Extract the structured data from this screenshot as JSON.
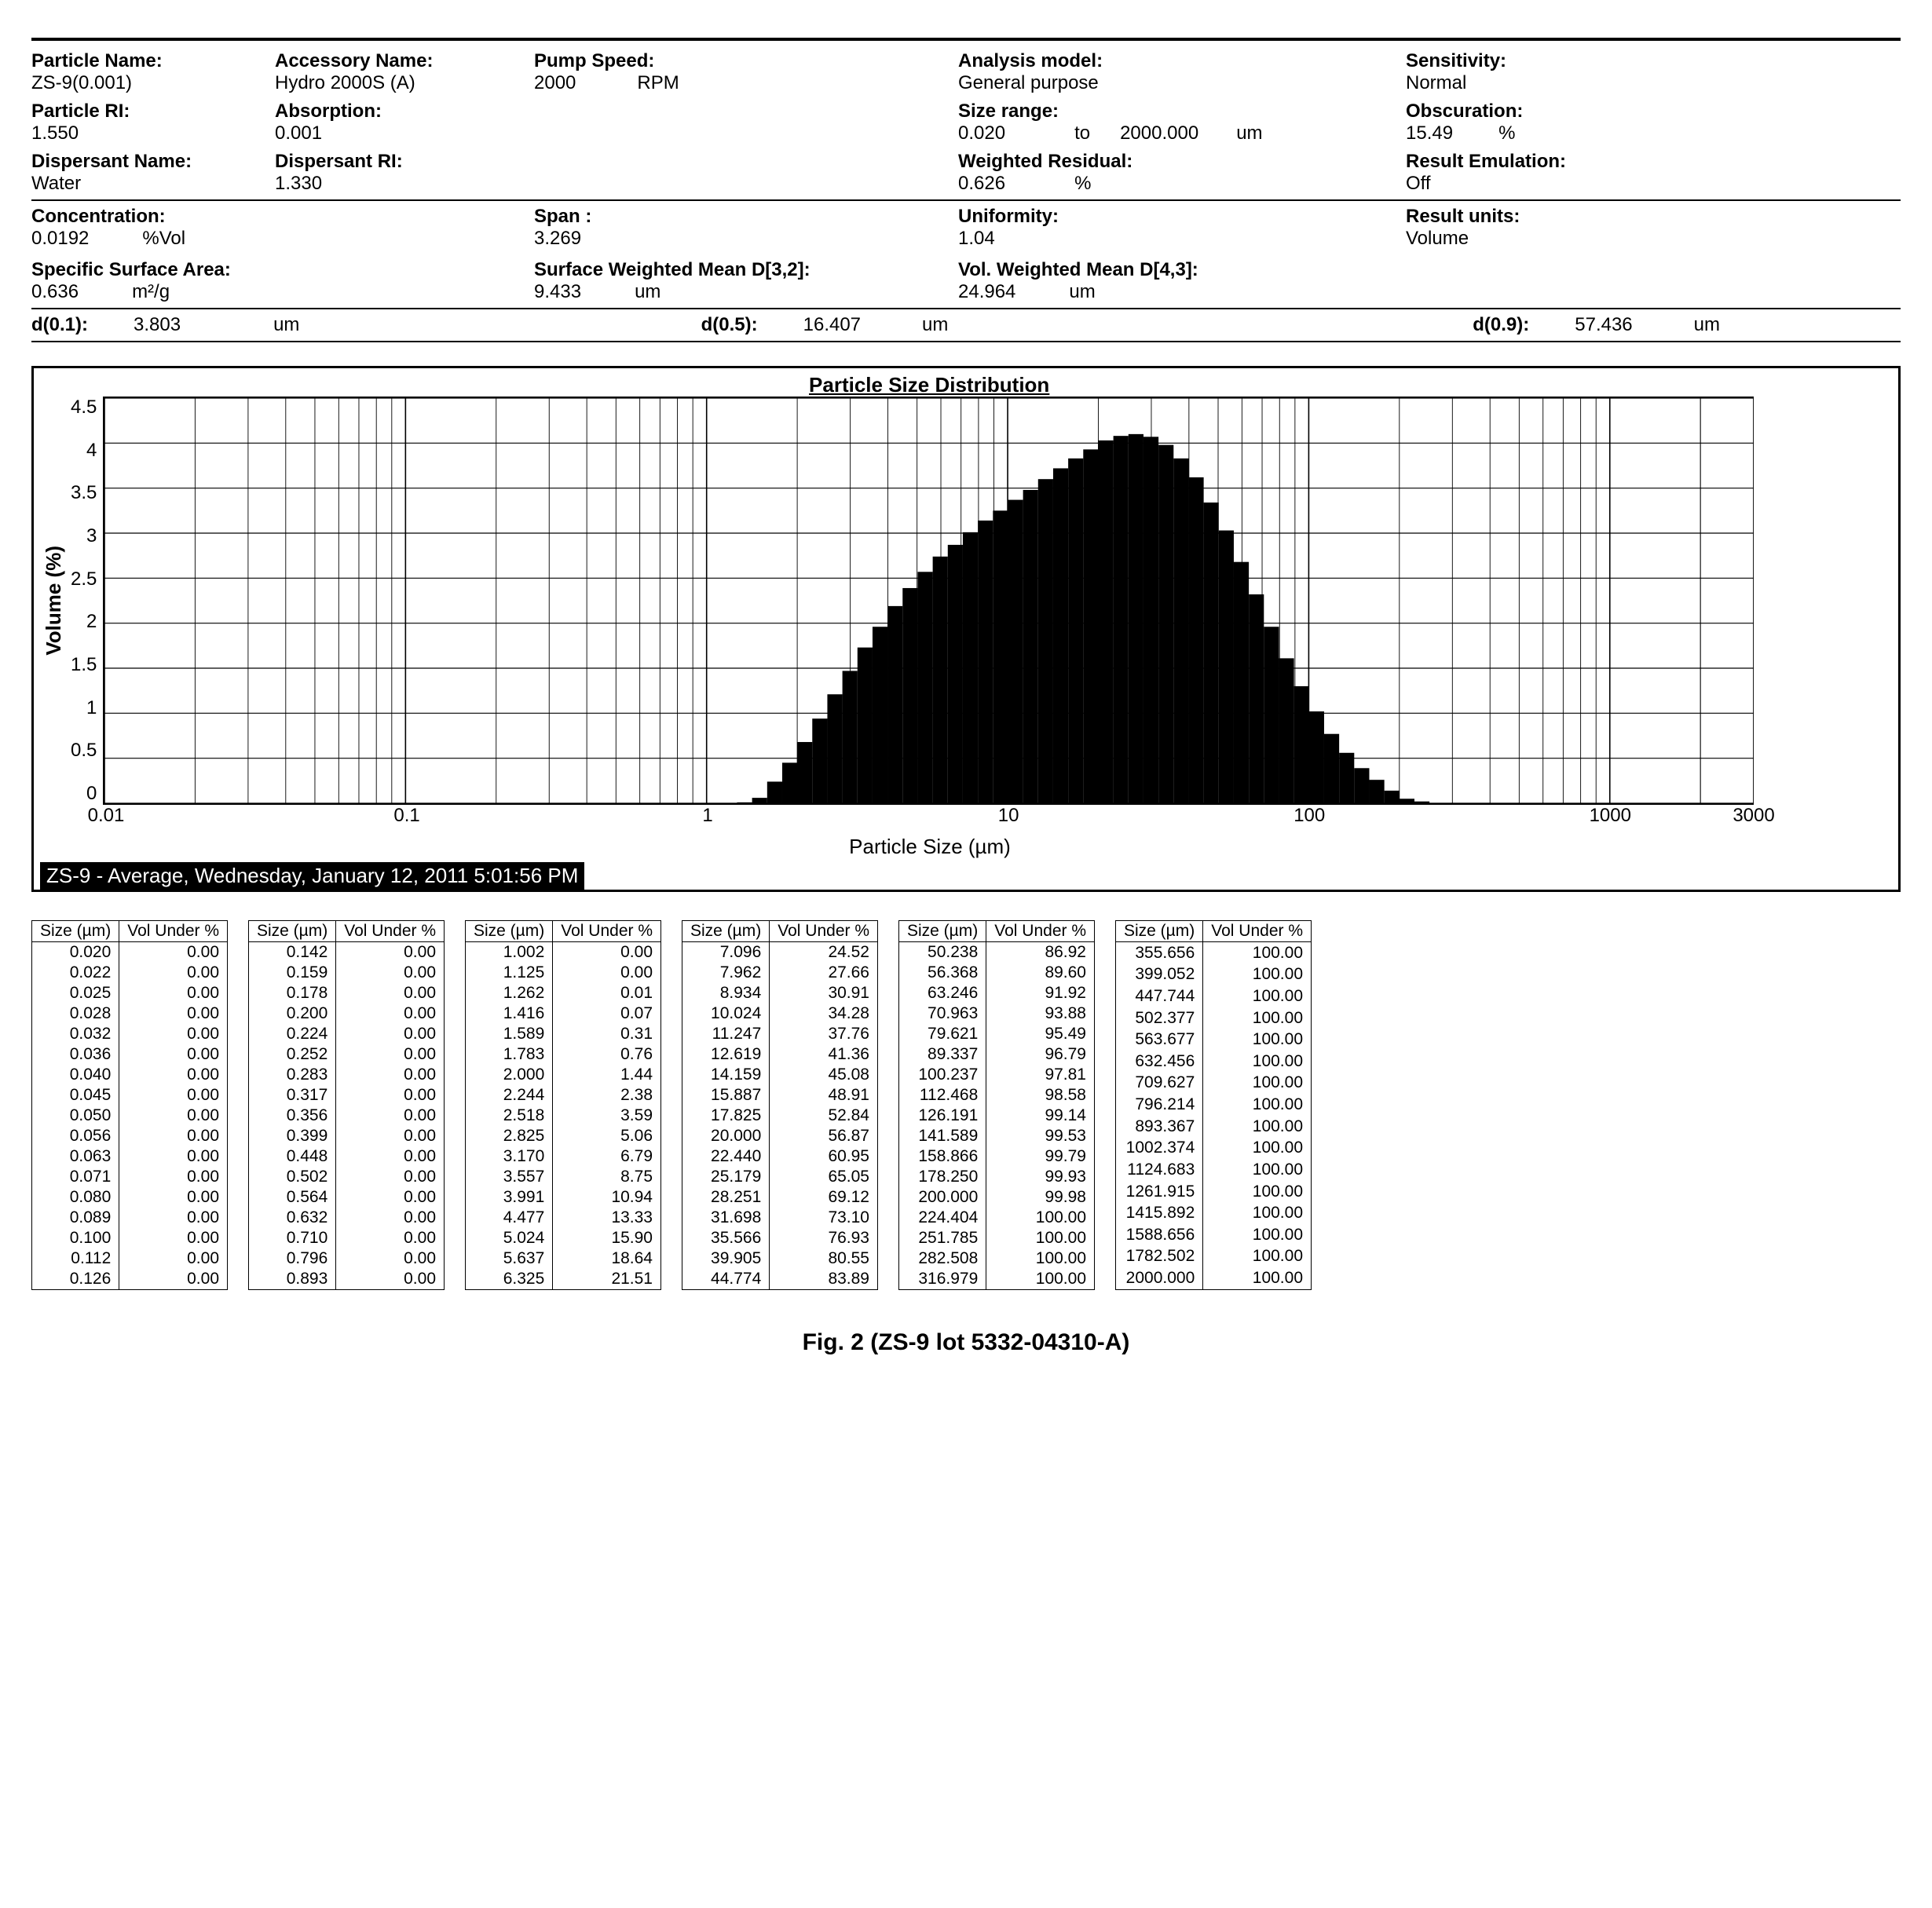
{
  "header": {
    "particle_name": {
      "label": "Particle Name:",
      "value": "ZS-9(0.001)"
    },
    "accessory_name": {
      "label": "Accessory Name:",
      "value": "Hydro 2000S (A)"
    },
    "pump_speed": {
      "label": "Pump Speed:",
      "value": "2000",
      "unit": "RPM"
    },
    "analysis_model": {
      "label": "Analysis model:",
      "value": "General purpose"
    },
    "sensitivity": {
      "label": "Sensitivity:",
      "value": "Normal"
    },
    "particle_ri": {
      "label": "Particle RI:",
      "value": "1.550"
    },
    "absorption": {
      "label": "Absorption:",
      "value": "0.001"
    },
    "size_range": {
      "label": "Size range:",
      "from": "0.020",
      "to_word": "to",
      "to": "2000.000",
      "unit": "um"
    },
    "obscuration": {
      "label": "Obscuration:",
      "value": "15.49",
      "unit": "%"
    },
    "dispersant_name": {
      "label": "Dispersant Name:",
      "value": "Water"
    },
    "dispersant_ri": {
      "label": "Dispersant RI:",
      "value": "1.330"
    },
    "weighted_residual": {
      "label": "Weighted Residual:",
      "value": "0.626",
      "unit": "%"
    },
    "result_emulation": {
      "label": "Result Emulation:",
      "value": "Off"
    },
    "concentration": {
      "label": "Concentration:",
      "value": "0.0192",
      "unit": "%Vol"
    },
    "span": {
      "label": "Span :",
      "value": "3.269"
    },
    "uniformity": {
      "label": "Uniformity:",
      "value": "1.04"
    },
    "result_units": {
      "label": "Result units:",
      "value": "Volume"
    },
    "ssa": {
      "label": "Specific Surface Area:",
      "value": "0.636",
      "unit": "m²/g"
    },
    "swm": {
      "label": "Surface Weighted Mean D[3,2]:",
      "value": "9.433",
      "unit": "um"
    },
    "vwm": {
      "label": "Vol. Weighted Mean D[4,3]:",
      "value": "24.964",
      "unit": "um"
    },
    "d01": {
      "label": "d(0.1):",
      "value": "3.803",
      "unit": "um"
    },
    "d05": {
      "label": "d(0.5):",
      "value": "16.407",
      "unit": "um"
    },
    "d09": {
      "label": "d(0.9):",
      "value": "57.436",
      "unit": "um"
    }
  },
  "chart": {
    "title": "Particle Size Distribution",
    "ylabel": "Volume (%)",
    "xlabel": "Particle Size (µm)",
    "legend": "ZS-9 - Average, Wednesday, January 12, 2011 5:01:56 PM",
    "ymin": 0,
    "ymax": 4.5,
    "yticks": [
      "4.5",
      "4",
      "3.5",
      "3",
      "2.5",
      "2",
      "1.5",
      "1",
      "0.5",
      "0"
    ],
    "xmin_log": -2,
    "xmax_log": 3.477,
    "xticks": [
      {
        "v": 0.01,
        "label": "0.01"
      },
      {
        "v": 0.1,
        "label": "0.1"
      },
      {
        "v": 1,
        "label": "1"
      },
      {
        "v": 10,
        "label": "10"
      },
      {
        "v": 100,
        "label": "100"
      },
      {
        "v": 1000,
        "label": "1000"
      },
      {
        "v": 3000,
        "label": "3000"
      }
    ],
    "bar_color": "#000000",
    "grid_color": "#000000",
    "series": [
      {
        "x": 1.125,
        "y": 0.0
      },
      {
        "x": 1.262,
        "y": 0.01
      },
      {
        "x": 1.416,
        "y": 0.06
      },
      {
        "x": 1.589,
        "y": 0.24
      },
      {
        "x": 1.783,
        "y": 0.45
      },
      {
        "x": 2.0,
        "y": 0.68
      },
      {
        "x": 2.244,
        "y": 0.94
      },
      {
        "x": 2.518,
        "y": 1.21
      },
      {
        "x": 2.825,
        "y": 1.47
      },
      {
        "x": 3.17,
        "y": 1.73
      },
      {
        "x": 3.557,
        "y": 1.96
      },
      {
        "x": 3.991,
        "y": 2.19
      },
      {
        "x": 4.477,
        "y": 2.39
      },
      {
        "x": 5.024,
        "y": 2.57
      },
      {
        "x": 5.637,
        "y": 2.74
      },
      {
        "x": 6.325,
        "y": 2.87
      },
      {
        "x": 7.096,
        "y": 3.01
      },
      {
        "x": 7.962,
        "y": 3.14
      },
      {
        "x": 8.934,
        "y": 3.25
      },
      {
        "x": 10.024,
        "y": 3.37
      },
      {
        "x": 11.247,
        "y": 3.48
      },
      {
        "x": 12.619,
        "y": 3.6
      },
      {
        "x": 14.159,
        "y": 3.72
      },
      {
        "x": 15.887,
        "y": 3.83
      },
      {
        "x": 17.825,
        "y": 3.93
      },
      {
        "x": 20.0,
        "y": 4.03
      },
      {
        "x": 22.44,
        "y": 4.08
      },
      {
        "x": 25.179,
        "y": 4.1
      },
      {
        "x": 28.251,
        "y": 4.07
      },
      {
        "x": 31.698,
        "y": 3.98
      },
      {
        "x": 35.566,
        "y": 3.83
      },
      {
        "x": 39.905,
        "y": 3.62
      },
      {
        "x": 44.774,
        "y": 3.34
      },
      {
        "x": 50.238,
        "y": 3.03
      },
      {
        "x": 56.368,
        "y": 2.68
      },
      {
        "x": 63.246,
        "y": 2.32
      },
      {
        "x": 70.963,
        "y": 1.96
      },
      {
        "x": 79.621,
        "y": 1.61
      },
      {
        "x": 89.337,
        "y": 1.3
      },
      {
        "x": 100.237,
        "y": 1.02
      },
      {
        "x": 112.468,
        "y": 0.77
      },
      {
        "x": 126.191,
        "y": 0.56
      },
      {
        "x": 141.589,
        "y": 0.39
      },
      {
        "x": 158.866,
        "y": 0.26
      },
      {
        "x": 178.25,
        "y": 0.14
      },
      {
        "x": 200.0,
        "y": 0.05
      },
      {
        "x": 224.404,
        "y": 0.02
      },
      {
        "x": 251.785,
        "y": 0.0
      }
    ]
  },
  "table": {
    "headers": [
      "Size (µm)",
      "Vol Under %"
    ],
    "columns": [
      [
        [
          "0.020",
          "0.00"
        ],
        [
          "0.022",
          "0.00"
        ],
        [
          "0.025",
          "0.00"
        ],
        [
          "0.028",
          "0.00"
        ],
        [
          "0.032",
          "0.00"
        ],
        [
          "0.036",
          "0.00"
        ],
        [
          "0.040",
          "0.00"
        ],
        [
          "0.045",
          "0.00"
        ],
        [
          "0.050",
          "0.00"
        ],
        [
          "0.056",
          "0.00"
        ],
        [
          "0.063",
          "0.00"
        ],
        [
          "0.071",
          "0.00"
        ],
        [
          "0.080",
          "0.00"
        ],
        [
          "0.089",
          "0.00"
        ],
        [
          "0.100",
          "0.00"
        ],
        [
          "0.112",
          "0.00"
        ],
        [
          "0.126",
          "0.00"
        ]
      ],
      [
        [
          "0.142",
          "0.00"
        ],
        [
          "0.159",
          "0.00"
        ],
        [
          "0.178",
          "0.00"
        ],
        [
          "0.200",
          "0.00"
        ],
        [
          "0.224",
          "0.00"
        ],
        [
          "0.252",
          "0.00"
        ],
        [
          "0.283",
          "0.00"
        ],
        [
          "0.317",
          "0.00"
        ],
        [
          "0.356",
          "0.00"
        ],
        [
          "0.399",
          "0.00"
        ],
        [
          "0.448",
          "0.00"
        ],
        [
          "0.502",
          "0.00"
        ],
        [
          "0.564",
          "0.00"
        ],
        [
          "0.632",
          "0.00"
        ],
        [
          "0.710",
          "0.00"
        ],
        [
          "0.796",
          "0.00"
        ],
        [
          "0.893",
          "0.00"
        ]
      ],
      [
        [
          "1.002",
          "0.00"
        ],
        [
          "1.125",
          "0.00"
        ],
        [
          "1.262",
          "0.01"
        ],
        [
          "1.416",
          "0.07"
        ],
        [
          "1.589",
          "0.31"
        ],
        [
          "1.783",
          "0.76"
        ],
        [
          "2.000",
          "1.44"
        ],
        [
          "2.244",
          "2.38"
        ],
        [
          "2.518",
          "3.59"
        ],
        [
          "2.825",
          "5.06"
        ],
        [
          "3.170",
          "6.79"
        ],
        [
          "3.557",
          "8.75"
        ],
        [
          "3.991",
          "10.94"
        ],
        [
          "4.477",
          "13.33"
        ],
        [
          "5.024",
          "15.90"
        ],
        [
          "5.637",
          "18.64"
        ],
        [
          "6.325",
          "21.51"
        ]
      ],
      [
        [
          "7.096",
          "24.52"
        ],
        [
          "7.962",
          "27.66"
        ],
        [
          "8.934",
          "30.91"
        ],
        [
          "10.024",
          "34.28"
        ],
        [
          "11.247",
          "37.76"
        ],
        [
          "12.619",
          "41.36"
        ],
        [
          "14.159",
          "45.08"
        ],
        [
          "15.887",
          "48.91"
        ],
        [
          "17.825",
          "52.84"
        ],
        [
          "20.000",
          "56.87"
        ],
        [
          "22.440",
          "60.95"
        ],
        [
          "25.179",
          "65.05"
        ],
        [
          "28.251",
          "69.12"
        ],
        [
          "31.698",
          "73.10"
        ],
        [
          "35.566",
          "76.93"
        ],
        [
          "39.905",
          "80.55"
        ],
        [
          "44.774",
          "83.89"
        ]
      ],
      [
        [
          "50.238",
          "86.92"
        ],
        [
          "56.368",
          "89.60"
        ],
        [
          "63.246",
          "91.92"
        ],
        [
          "70.963",
          "93.88"
        ],
        [
          "79.621",
          "95.49"
        ],
        [
          "89.337",
          "96.79"
        ],
        [
          "100.237",
          "97.81"
        ],
        [
          "112.468",
          "98.58"
        ],
        [
          "126.191",
          "99.14"
        ],
        [
          "141.589",
          "99.53"
        ],
        [
          "158.866",
          "99.79"
        ],
        [
          "178.250",
          "99.93"
        ],
        [
          "200.000",
          "99.98"
        ],
        [
          "224.404",
          "100.00"
        ],
        [
          "251.785",
          "100.00"
        ],
        [
          "282.508",
          "100.00"
        ],
        [
          "316.979",
          "100.00"
        ]
      ],
      [
        [
          "355.656",
          "100.00"
        ],
        [
          "399.052",
          "100.00"
        ],
        [
          "447.744",
          "100.00"
        ],
        [
          "502.377",
          "100.00"
        ],
        [
          "563.677",
          "100.00"
        ],
        [
          "632.456",
          "100.00"
        ],
        [
          "709.627",
          "100.00"
        ],
        [
          "796.214",
          "100.00"
        ],
        [
          "893.367",
          "100.00"
        ],
        [
          "1002.374",
          "100.00"
        ],
        [
          "1124.683",
          "100.00"
        ],
        [
          "1261.915",
          "100.00"
        ],
        [
          "1415.892",
          "100.00"
        ],
        [
          "1588.656",
          "100.00"
        ],
        [
          "1782.502",
          "100.00"
        ],
        [
          "2000.000",
          "100.00"
        ]
      ]
    ]
  },
  "caption": "Fig. 2 (ZS-9 lot 5332-04310-A)"
}
